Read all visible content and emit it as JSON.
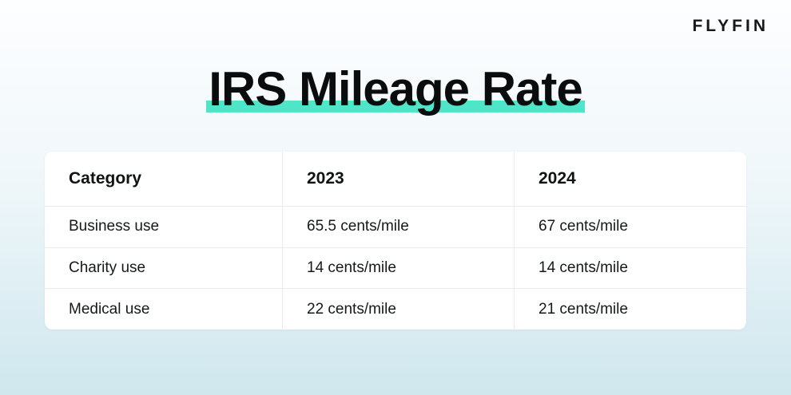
{
  "logo": {
    "text": "FLYFIN"
  },
  "title": {
    "text": "IRS Mileage Rate"
  },
  "theme": {
    "accent_color": "#4FE5C8",
    "background_top": "#fdfeff",
    "background_bottom": "#cfe7ee",
    "table_background": "#ffffff"
  },
  "table": {
    "headers": [
      "Category",
      "2023",
      "2024"
    ],
    "rows": [
      {
        "category": "Business use",
        "y2023": "65.5 cents/mile",
        "y2024": "67 cents/mile"
      },
      {
        "category": "Charity use",
        "y2023": "14 cents/mile",
        "y2024": "14 cents/mile"
      },
      {
        "category": "Medical use",
        "y2023": "22 cents/mile",
        "y2024": "21 cents/mile"
      }
    ]
  },
  "chart_data": {
    "type": "table",
    "title": "IRS Mileage Rate",
    "columns": [
      "Category",
      "2023",
      "2024"
    ],
    "rows": [
      [
        "Business use",
        "65.5 cents/mile",
        "67 cents/mile"
      ],
      [
        "Charity use",
        "14 cents/mile",
        "14 cents/mile"
      ],
      [
        "Medical use",
        "22 cents/mile",
        "21 cents/mile"
      ]
    ],
    "series": [
      {
        "name": "2023",
        "values": [
          65.5,
          14,
          22
        ]
      },
      {
        "name": "2024",
        "values": [
          67,
          14,
          21
        ]
      }
    ],
    "categories": [
      "Business use",
      "Charity use",
      "Medical use"
    ],
    "unit": "cents/mile"
  }
}
